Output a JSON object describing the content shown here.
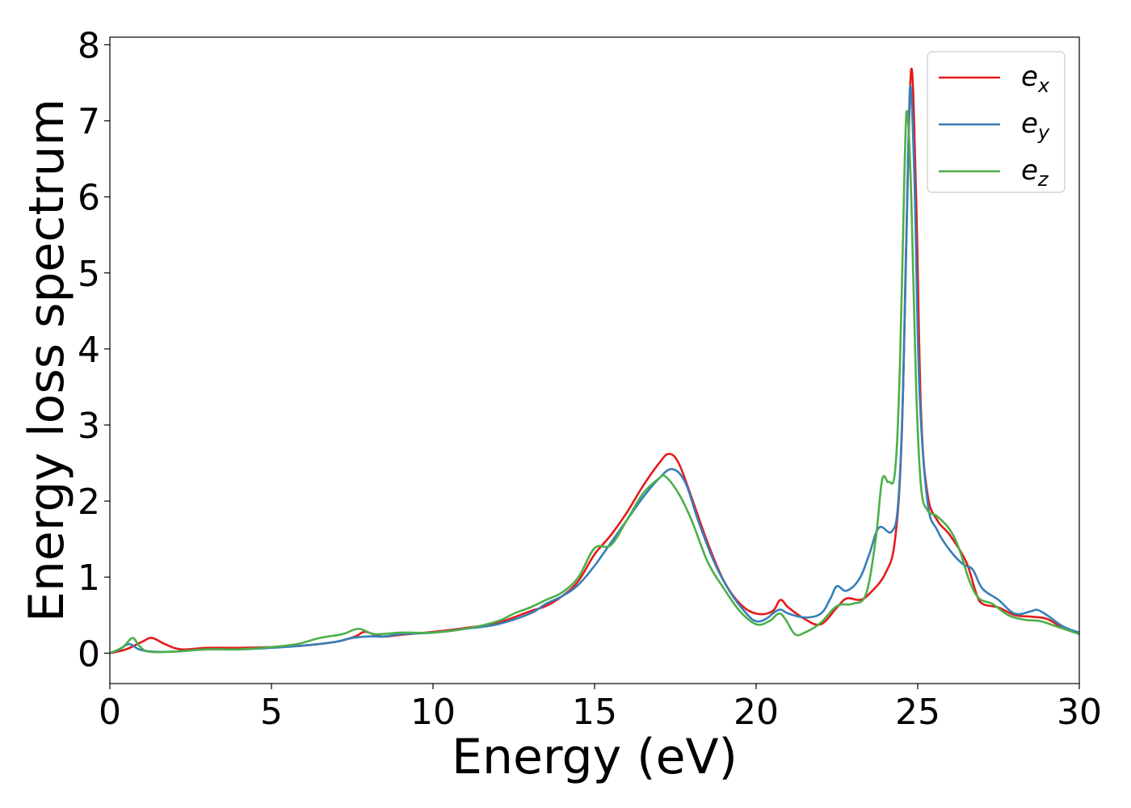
{
  "chart_data": {
    "type": "line",
    "title": "",
    "xlabel": "Energy (eV)",
    "ylabel": "Energy loss spectrum",
    "xlim": [
      0,
      30
    ],
    "ylim": [
      -0.4,
      8.1
    ],
    "xticks": [
      0,
      5,
      10,
      15,
      20,
      25,
      30
    ],
    "yticks": [
      0,
      1,
      2,
      3,
      4,
      5,
      6,
      7,
      8
    ],
    "grid": false,
    "legend_position": "top-right",
    "series": [
      {
        "name": "e_x",
        "label_base": "e",
        "label_sub": "x",
        "color": "#e41a1c",
        "points": [
          [
            0,
            0
          ],
          [
            0.5,
            0.05
          ],
          [
            1.0,
            0.15
          ],
          [
            1.3,
            0.2
          ],
          [
            1.7,
            0.12
          ],
          [
            2.2,
            0.05
          ],
          [
            3.0,
            0.07
          ],
          [
            4.0,
            0.07
          ],
          [
            5.0,
            0.08
          ],
          [
            6.0,
            0.1
          ],
          [
            7.0,
            0.15
          ],
          [
            7.6,
            0.22
          ],
          [
            7.9,
            0.28
          ],
          [
            8.4,
            0.22
          ],
          [
            9.0,
            0.24
          ],
          [
            10.0,
            0.28
          ],
          [
            11.0,
            0.33
          ],
          [
            12.0,
            0.4
          ],
          [
            13.0,
            0.55
          ],
          [
            13.5,
            0.62
          ],
          [
            14.0,
            0.75
          ],
          [
            14.5,
            0.95
          ],
          [
            15.0,
            1.3
          ],
          [
            15.5,
            1.55
          ],
          [
            16.0,
            1.85
          ],
          [
            16.5,
            2.2
          ],
          [
            17.0,
            2.5
          ],
          [
            17.3,
            2.62
          ],
          [
            17.6,
            2.5
          ],
          [
            18.0,
            2.05
          ],
          [
            18.5,
            1.45
          ],
          [
            19.0,
            0.95
          ],
          [
            19.5,
            0.65
          ],
          [
            20.0,
            0.52
          ],
          [
            20.5,
            0.55
          ],
          [
            20.75,
            0.7
          ],
          [
            21.0,
            0.6
          ],
          [
            21.5,
            0.45
          ],
          [
            22.0,
            0.38
          ],
          [
            22.5,
            0.6
          ],
          [
            22.8,
            0.72
          ],
          [
            23.2,
            0.7
          ],
          [
            23.5,
            0.78
          ],
          [
            24.0,
            1.05
          ],
          [
            24.3,
            1.5
          ],
          [
            24.5,
            2.8
          ],
          [
            24.65,
            5.5
          ],
          [
            24.8,
            7.68
          ],
          [
            24.95,
            6.0
          ],
          [
            25.1,
            3.2
          ],
          [
            25.3,
            2.1
          ],
          [
            25.6,
            1.75
          ],
          [
            26.0,
            1.55
          ],
          [
            26.5,
            1.2
          ],
          [
            26.8,
            0.8
          ],
          [
            27.0,
            0.65
          ],
          [
            27.5,
            0.6
          ],
          [
            28.0,
            0.5
          ],
          [
            28.5,
            0.48
          ],
          [
            29.0,
            0.45
          ],
          [
            29.5,
            0.33
          ],
          [
            30.0,
            0.27
          ]
        ]
      },
      {
        "name": "e_y",
        "label_base": "e",
        "label_sub": "y",
        "color": "#377eb8",
        "points": [
          [
            0,
            0
          ],
          [
            0.3,
            0.05
          ],
          [
            0.6,
            0.12
          ],
          [
            0.9,
            0.05
          ],
          [
            1.3,
            0.02
          ],
          [
            2.0,
            0.02
          ],
          [
            3.0,
            0.05
          ],
          [
            4.0,
            0.05
          ],
          [
            5.0,
            0.07
          ],
          [
            6.0,
            0.1
          ],
          [
            7.0,
            0.15
          ],
          [
            7.5,
            0.2
          ],
          [
            8.0,
            0.22
          ],
          [
            8.5,
            0.22
          ],
          [
            9.0,
            0.25
          ],
          [
            10.0,
            0.27
          ],
          [
            11.0,
            0.32
          ],
          [
            12.0,
            0.38
          ],
          [
            13.0,
            0.52
          ],
          [
            13.5,
            0.65
          ],
          [
            14.0,
            0.75
          ],
          [
            14.5,
            0.9
          ],
          [
            15.0,
            1.15
          ],
          [
            15.5,
            1.45
          ],
          [
            16.0,
            1.75
          ],
          [
            16.5,
            2.05
          ],
          [
            17.0,
            2.3
          ],
          [
            17.4,
            2.42
          ],
          [
            17.8,
            2.25
          ],
          [
            18.2,
            1.75
          ],
          [
            18.7,
            1.2
          ],
          [
            19.2,
            0.8
          ],
          [
            19.7,
            0.52
          ],
          [
            20.0,
            0.42
          ],
          [
            20.3,
            0.45
          ],
          [
            20.7,
            0.57
          ],
          [
            21.0,
            0.52
          ],
          [
            21.5,
            0.47
          ],
          [
            22.0,
            0.52
          ],
          [
            22.3,
            0.72
          ],
          [
            22.5,
            0.88
          ],
          [
            22.8,
            0.82
          ],
          [
            23.2,
            0.98
          ],
          [
            23.5,
            1.3
          ],
          [
            23.8,
            1.65
          ],
          [
            24.2,
            1.6
          ],
          [
            24.4,
            2.0
          ],
          [
            24.55,
            3.5
          ],
          [
            24.7,
            6.5
          ],
          [
            24.78,
            7.45
          ],
          [
            24.9,
            6.2
          ],
          [
            25.05,
            3.5
          ],
          [
            25.3,
            2.0
          ],
          [
            25.6,
            1.62
          ],
          [
            26.0,
            1.35
          ],
          [
            26.4,
            1.17
          ],
          [
            26.7,
            1.1
          ],
          [
            27.0,
            0.85
          ],
          [
            27.5,
            0.7
          ],
          [
            28.0,
            0.52
          ],
          [
            28.5,
            0.55
          ],
          [
            28.7,
            0.57
          ],
          [
            29.0,
            0.5
          ],
          [
            29.5,
            0.35
          ],
          [
            30.0,
            0.27
          ]
        ]
      },
      {
        "name": "e_z",
        "label_base": "e",
        "label_sub": "z",
        "color": "#4daf4a",
        "points": [
          [
            0,
            0
          ],
          [
            0.4,
            0.08
          ],
          [
            0.7,
            0.2
          ],
          [
            0.9,
            0.1
          ],
          [
            1.2,
            0.02
          ],
          [
            2.0,
            0.02
          ],
          [
            3.0,
            0.05
          ],
          [
            4.0,
            0.05
          ],
          [
            5.0,
            0.08
          ],
          [
            5.8,
            0.12
          ],
          [
            6.5,
            0.2
          ],
          [
            7.2,
            0.25
          ],
          [
            7.7,
            0.32
          ],
          [
            8.2,
            0.25
          ],
          [
            9.0,
            0.27
          ],
          [
            10.0,
            0.27
          ],
          [
            11.0,
            0.32
          ],
          [
            12.0,
            0.42
          ],
          [
            12.5,
            0.52
          ],
          [
            13.0,
            0.6
          ],
          [
            13.5,
            0.7
          ],
          [
            14.0,
            0.8
          ],
          [
            14.5,
            1.0
          ],
          [
            15.0,
            1.38
          ],
          [
            15.5,
            1.42
          ],
          [
            16.0,
            1.75
          ],
          [
            16.5,
            2.1
          ],
          [
            17.0,
            2.3
          ],
          [
            17.2,
            2.32
          ],
          [
            17.6,
            2.1
          ],
          [
            18.0,
            1.75
          ],
          [
            18.5,
            1.2
          ],
          [
            19.0,
            0.85
          ],
          [
            19.5,
            0.55
          ],
          [
            20.0,
            0.38
          ],
          [
            20.4,
            0.42
          ],
          [
            20.7,
            0.52
          ],
          [
            20.9,
            0.45
          ],
          [
            21.2,
            0.25
          ],
          [
            21.5,
            0.27
          ],
          [
            22.0,
            0.4
          ],
          [
            22.5,
            0.62
          ],
          [
            23.0,
            0.65
          ],
          [
            23.4,
            0.78
          ],
          [
            23.7,
            1.5
          ],
          [
            23.9,
            2.28
          ],
          [
            24.1,
            2.25
          ],
          [
            24.3,
            2.4
          ],
          [
            24.45,
            3.8
          ],
          [
            24.6,
            6.5
          ],
          [
            24.68,
            7.1
          ],
          [
            24.8,
            6.0
          ],
          [
            24.95,
            3.5
          ],
          [
            25.1,
            2.2
          ],
          [
            25.3,
            1.88
          ],
          [
            25.6,
            1.8
          ],
          [
            26.0,
            1.62
          ],
          [
            26.3,
            1.35
          ],
          [
            26.6,
            0.95
          ],
          [
            26.9,
            0.72
          ],
          [
            27.3,
            0.65
          ],
          [
            27.8,
            0.5
          ],
          [
            28.3,
            0.44
          ],
          [
            28.8,
            0.42
          ],
          [
            29.3,
            0.35
          ],
          [
            30.0,
            0.25
          ]
        ]
      }
    ]
  }
}
